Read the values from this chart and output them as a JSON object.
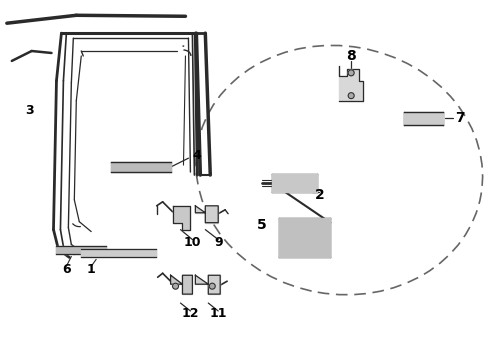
{
  "bg_color": "#ffffff",
  "line_color": "#2a2a2a",
  "label_color": "#000000",
  "dashed_color": "#666666",
  "figsize": [
    4.9,
    3.6
  ],
  "dpi": 100
}
